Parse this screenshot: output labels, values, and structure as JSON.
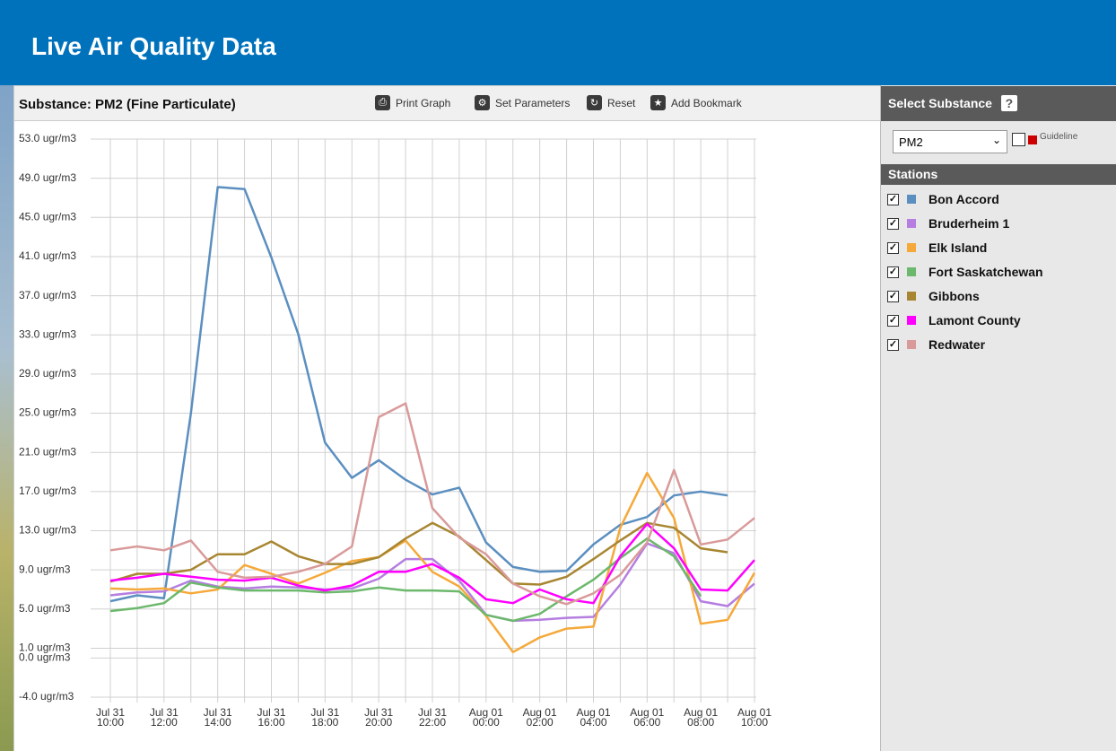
{
  "header": {
    "title": "Live Air Quality Data"
  },
  "toolbar": {
    "substance": "Substance: PM2 (Fine Particulate)",
    "buttons": [
      "Print Graph",
      "Set Parameters",
      "Reset",
      "Add Bookmark"
    ]
  },
  "sidebar": {
    "select_title": "Select Substance",
    "help": "?",
    "selected": "PM2",
    "guideline": "Guideline",
    "stations_title": "Stations"
  },
  "chart_data": {
    "type": "line",
    "categories": [
      "Jul 31\n10:00",
      null,
      "Jul 31\n12:00",
      null,
      "Jul 31\n14:00",
      null,
      "Jul 31\n16:00",
      null,
      "Jul 31\n18:00",
      null,
      "Jul 31\n20:00",
      null,
      "Jul 31\n22:00",
      null,
      "Aug 01\n00:00",
      null,
      "Aug 01\n02:00",
      null,
      "Aug 01\n04:00",
      null,
      "Aug 01\n06:00",
      null,
      "Aug 01\n08:00",
      null,
      "Aug 01\n10:00"
    ],
    "ylim": [
      -4,
      53
    ],
    "yticks": [
      {
        "value": 53,
        "label": "53.0 ugr/m3"
      },
      {
        "value": 49,
        "label": "49.0 ugr/m3"
      },
      {
        "value": 45,
        "label": "45.0 ugr/m3"
      },
      {
        "value": 41,
        "label": "41.0 ugr/m3"
      },
      {
        "value": 37,
        "label": "37.0 ugr/m3"
      },
      {
        "value": 33,
        "label": "33.0 ugr/m3"
      },
      {
        "value": 29,
        "label": "29.0 ugr/m3"
      },
      {
        "value": 25,
        "label": "25.0 ugr/m3"
      },
      {
        "value": 21,
        "label": "21.0 ugr/m3"
      },
      {
        "value": 17,
        "label": "17.0 ugr/m3"
      },
      {
        "value": 13,
        "label": "13.0 ugr/m3"
      },
      {
        "value": 9,
        "label": "9.0 ugr/m3"
      },
      {
        "value": 5,
        "label": "5.0 ugr/m3"
      },
      {
        "value": 1,
        "label": "1.0 ugr/m3"
      },
      {
        "value": 0,
        "label": "0.0 ugr/m3"
      },
      {
        "value": -4,
        "label": "-4.0 ugr/m3"
      }
    ],
    "grid": true,
    "series": [
      {
        "name": "Bon Accord",
        "color": "#5b8fc0",
        "values": [
          5.8,
          6.4,
          6.1,
          25,
          48.1,
          47.9,
          40.9,
          33.1,
          22,
          18.4,
          20.2,
          18.2,
          16.7,
          17.4,
          11.8,
          9.3,
          8.8,
          8.9,
          11.6,
          13.6,
          14.4,
          16.6,
          17.0,
          16.6,
          null
        ]
      },
      {
        "name": "Bruderheim 1",
        "color": "#b57ee0",
        "values": [
          6.4,
          6.7,
          6.8,
          7.9,
          7.3,
          7.1,
          7.3,
          7.2,
          7.0,
          7.1,
          8.1,
          10.1,
          10.1,
          7.9,
          4.4,
          3.8,
          3.9,
          4.1,
          4.2,
          7.5,
          11.7,
          10.7,
          5.8,
          5.3,
          7.6
        ]
      },
      {
        "name": "Elk Island",
        "color": "#f5a93a",
        "values": [
          7.1,
          7.0,
          7.1,
          6.6,
          7.0,
          9.5,
          8.6,
          7.6,
          8.7,
          9.9,
          10.3,
          12.0,
          8.8,
          7.3,
          4.3,
          0.6,
          2.1,
          3.0,
          3.2,
          13.3,
          18.9,
          14.3,
          3.5,
          3.9,
          8.7
        ]
      },
      {
        "name": "Fort Saskatchewan",
        "color": "#6cb86c",
        "values": [
          4.8,
          5.1,
          5.6,
          7.7,
          7.2,
          6.9,
          6.9,
          6.9,
          6.7,
          6.8,
          7.2,
          6.9,
          6.9,
          6.8,
          4.4,
          3.8,
          4.5,
          6.3,
          8.0,
          10.2,
          12.2,
          10.4,
          6.3,
          null,
          null
        ]
      },
      {
        "name": "Gibbons",
        "color": "#a88631",
        "values": [
          7.8,
          8.6,
          8.6,
          9.0,
          10.6,
          10.6,
          11.9,
          10.4,
          9.6,
          9.6,
          10.3,
          12.2,
          13.8,
          12.4,
          10.0,
          7.6,
          7.5,
          8.3,
          10.1,
          12.0,
          13.8,
          13.3,
          11.2,
          10.8,
          null
        ]
      },
      {
        "name": "Lamont County",
        "color": "#ff00ff",
        "values": [
          7.9,
          8.2,
          8.6,
          8.3,
          8.0,
          7.9,
          8.2,
          7.4,
          6.9,
          7.4,
          8.8,
          8.8,
          9.6,
          8.2,
          6.0,
          5.6,
          7.0,
          6.0,
          5.6,
          10.4,
          13.7,
          11.2,
          7.0,
          6.9,
          10.0
        ]
      },
      {
        "name": "Redwater",
        "color": "#d99a9a",
        "values": [
          11.0,
          11.4,
          11.0,
          12.0,
          8.8,
          8.2,
          8.3,
          8.8,
          9.6,
          11.4,
          24.6,
          26.0,
          15.3,
          12.3,
          10.6,
          7.6,
          6.3,
          5.5,
          6.6,
          8.5,
          11.8,
          19.2,
          11.6,
          12.1,
          14.3
        ]
      }
    ]
  }
}
